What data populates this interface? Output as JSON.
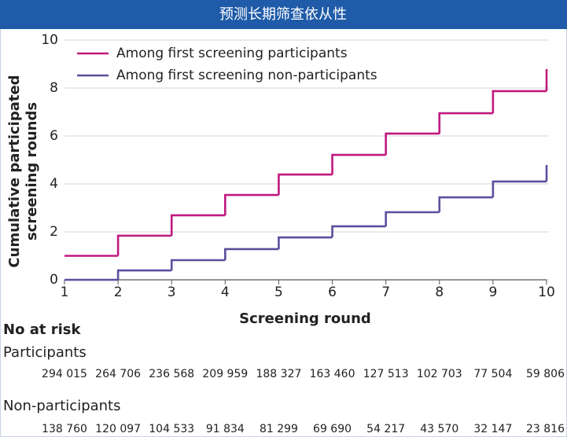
{
  "chart_data": {
    "type": "step",
    "title": "预测长期筛查依从性",
    "y_label": [
      "Cumulative participated",
      "screening rounds"
    ],
    "x_label": "Screening round",
    "x": [
      1,
      2,
      3,
      4,
      5,
      6,
      7,
      8,
      9,
      10
    ],
    "xlim": [
      1,
      10
    ],
    "xticks": [
      1,
      2,
      3,
      4,
      5,
      6,
      7,
      8,
      9,
      10
    ],
    "ylim": [
      0,
      10
    ],
    "yticks": [
      0,
      2,
      4,
      6,
      8,
      10
    ],
    "grid": true,
    "legend": "top-left",
    "series": [
      {
        "name": "Among first screening participants",
        "color": "#c0187f",
        "values": [
          1.0,
          1.84,
          2.69,
          3.54,
          4.39,
          5.21,
          6.1,
          6.95,
          7.87,
          8.79
        ]
      },
      {
        "name": "Among first screening non-participants",
        "color": "#5c4f9e",
        "values": [
          0,
          0.39,
          0.82,
          1.28,
          1.77,
          2.23,
          2.82,
          3.44,
          4.1,
          4.79
        ]
      }
    ],
    "risk_table": {
      "title": "No at risk",
      "rows": [
        {
          "label": "Participants",
          "values": [
            294015,
            264706,
            236568,
            209959,
            188327,
            163460,
            127513,
            102703,
            77504,
            59806
          ],
          "value_labels": [
            "294 015",
            "264 706",
            "236 568",
            "209 959",
            "188 327",
            "163 460",
            "127 513",
            "102 703",
            "77 504",
            "59 806"
          ]
        },
        {
          "label": "Non-participants",
          "values": [
            138760,
            120097,
            104533,
            91834,
            81299,
            69690,
            54217,
            43570,
            32147,
            23816
          ],
          "value_labels": [
            "138 760",
            "120 097",
            "104 533",
            "91 834",
            "81 299",
            "69 690",
            "54 217",
            "43 570",
            "32 147",
            "23 816"
          ]
        }
      ]
    }
  }
}
